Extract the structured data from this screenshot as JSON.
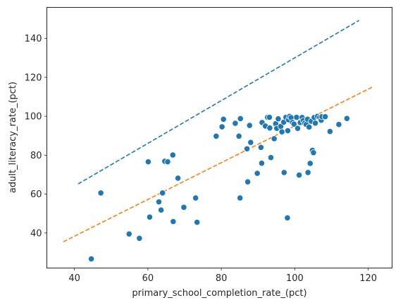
{
  "chart_data": {
    "type": "scatter",
    "xlabel": "primary_school_completion_rate_(pct)",
    "ylabel": "adult_literacy_rate_(pct)",
    "xlim": [
      32.5,
      126.5
    ],
    "ylim": [
      22,
      156
    ],
    "x_ticks": [
      40,
      60,
      80,
      100,
      120
    ],
    "y_ticks": [
      40,
      60,
      80,
      100,
      120,
      140
    ],
    "grid": false,
    "point_color": "#1f77b4",
    "point_edge_color": "#ffffff",
    "series": [
      {
        "type": "scatter",
        "points": [
          [
            44.6,
            26.7
          ],
          [
            47.2,
            60.6
          ],
          [
            54.9,
            39.5
          ],
          [
            57.7,
            37.3
          ],
          [
            60.1,
            76.6
          ],
          [
            60.5,
            48.2
          ],
          [
            63.0,
            56.0
          ],
          [
            63.6,
            51.8
          ],
          [
            64.0,
            60.6
          ],
          [
            64.6,
            76.9
          ],
          [
            65.4,
            76.6
          ],
          [
            66.8,
            80.1
          ],
          [
            66.9,
            45.9
          ],
          [
            68.2,
            68.2
          ],
          [
            69.8,
            53.2
          ],
          [
            73.0,
            58.0
          ],
          [
            73.4,
            45.5
          ],
          [
            78.6,
            89.8
          ],
          [
            80.2,
            94.6
          ],
          [
            80.6,
            98.5
          ],
          [
            83.8,
            96.4
          ],
          [
            84.8,
            89.8
          ],
          [
            85.2,
            98.8
          ],
          [
            85.1,
            58.0
          ],
          [
            87.0,
            83.3
          ],
          [
            87.2,
            66.3
          ],
          [
            87.7,
            95.3
          ],
          [
            88.0,
            86.6
          ],
          [
            89.8,
            70.7
          ],
          [
            90.8,
            84.0
          ],
          [
            91.0,
            75.9
          ],
          [
            91.1,
            96.8
          ],
          [
            92.0,
            95.0
          ],
          [
            92.6,
            99.5
          ],
          [
            93.1,
            99.5
          ],
          [
            93.2,
            94.0
          ],
          [
            93.5,
            78.8
          ],
          [
            94.4,
            88.5
          ],
          [
            94.8,
            96.2
          ],
          [
            95.1,
            93.8
          ],
          [
            95.5,
            98.7
          ],
          [
            96.2,
            94.8
          ],
          [
            96.5,
            92.0
          ],
          [
            97.0,
            97.0
          ],
          [
            97.1,
            71.1
          ],
          [
            97.6,
            99.5
          ],
          [
            98.0,
            47.8
          ],
          [
            98.1,
            92.6
          ],
          [
            98.3,
            98.2
          ],
          [
            98.6,
            100.0
          ],
          [
            99.0,
            99.3
          ],
          [
            99.4,
            96.8
          ],
          [
            99.8,
            96.0
          ],
          [
            100.5,
            99.5
          ],
          [
            100.8,
            93.8
          ],
          [
            101.2,
            69.8
          ],
          [
            101.5,
            96.8
          ],
          [
            102.0,
            99.4
          ],
          [
            102.3,
            97.8
          ],
          [
            102.7,
            96.5
          ],
          [
            103.1,
            95.8
          ],
          [
            103.5,
            98.5
          ],
          [
            103.6,
            71.1
          ],
          [
            103.9,
            94.5
          ],
          [
            104.2,
            75.8
          ],
          [
            104.5,
            97.5
          ],
          [
            104.8,
            82.5
          ],
          [
            105.1,
            81.3
          ],
          [
            105.3,
            99.4
          ],
          [
            105.6,
            96.5
          ],
          [
            106.2,
            100.0
          ],
          [
            106.8,
            99.4
          ],
          [
            107.2,
            98.0
          ],
          [
            107.4,
            99.8
          ],
          [
            108.3,
            99.8
          ],
          [
            109.6,
            92.2
          ],
          [
            112.0,
            95.8
          ],
          [
            114.2,
            98.9
          ]
        ]
      },
      {
        "type": "line",
        "style": "dashed",
        "color": "#1f77b4",
        "x": [
          41.0,
          117.5
        ],
        "y": [
          65.2,
          149.3
        ]
      },
      {
        "type": "line",
        "style": "dashed",
        "color": "#ff7f0e",
        "x": [
          37.0,
          121.5
        ],
        "y": [
          35.5,
          115.4
        ]
      }
    ]
  }
}
